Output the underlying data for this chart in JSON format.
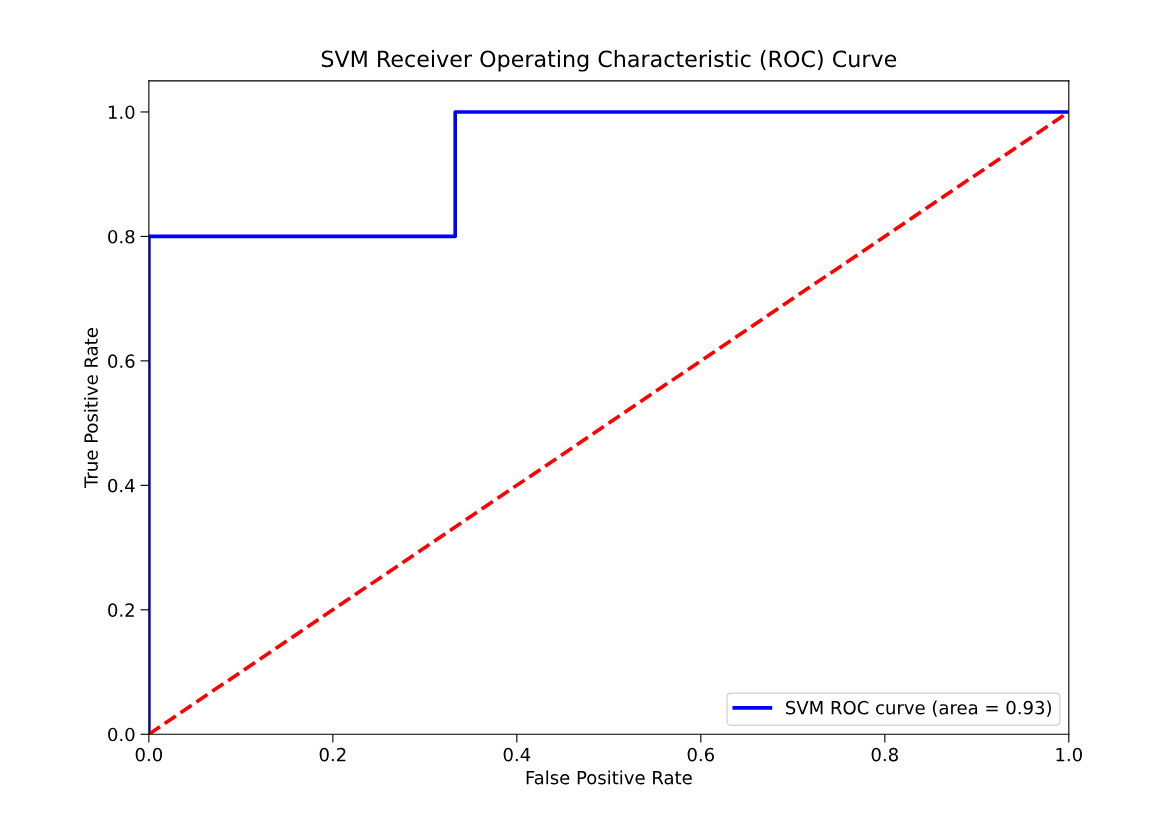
{
  "chart_data": {
    "type": "line",
    "title": "SVM Receiver Operating Characteristic (ROC) Curve",
    "xlabel": "False Positive Rate",
    "ylabel": "True Positive Rate",
    "series": [
      {
        "name": "SVM ROC curve (area = 0.93)",
        "color": "#0000ff",
        "x": [
          0,
          0,
          0.333,
          0.333,
          1
        ],
        "values": [
          0,
          0.8,
          0.8,
          1,
          1
        ],
        "line_style": "solid"
      },
      {
        "color": "#ff0000",
        "x": [
          0,
          1
        ],
        "values": [
          0,
          1
        ],
        "line_style": "dashed"
      }
    ],
    "xlim": [
      0,
      1
    ],
    "ylim": [
      0,
      1.05
    ],
    "xticks": [
      {
        "value": 0,
        "label": "0.0"
      },
      0.2,
      0.4,
      0.6,
      0.8,
      {
        "value": 1,
        "label": "1.0"
      }
    ],
    "yticks": [
      {
        "value": 0,
        "label": "0.0"
      },
      0.2,
      0.4,
      0.6,
      0.8,
      {
        "value": 1,
        "label": "1.0"
      }
    ],
    "legend": "bottom right",
    "grid": false
  }
}
